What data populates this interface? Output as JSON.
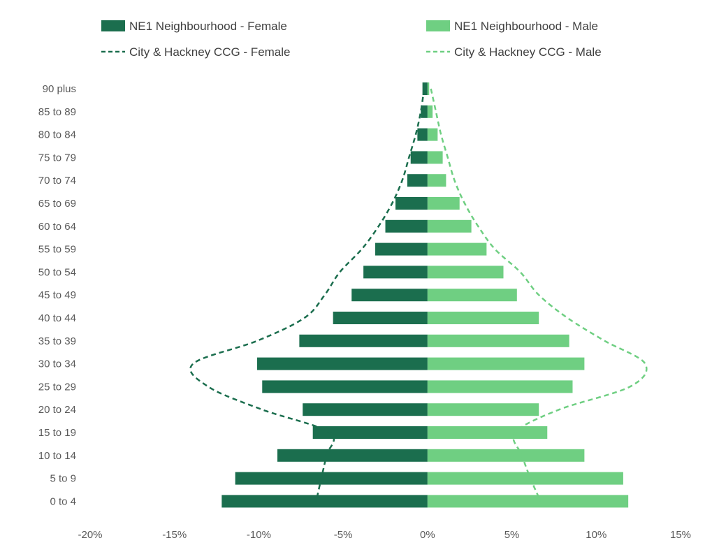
{
  "chart_data": {
    "type": "bar",
    "orientation": "horizontal",
    "title": "",
    "xlabel": "",
    "ylabel": "",
    "categories": [
      "90 plus",
      "85 to 89",
      "80 to 84",
      "75 to 79",
      "70 to 74",
      "65 to 69",
      "60 to 64",
      "55 to 59",
      "50 to 54",
      "45 to 49",
      "40 to 44",
      "35 to 39",
      "30 to 34",
      "25 to 29",
      "20 to 24",
      "15 to 19",
      "10 to 14",
      "5 to 9",
      "0 to 4"
    ],
    "xlim": [
      -20,
      15
    ],
    "x_ticks": [
      -20,
      -15,
      -10,
      -5,
      0,
      5,
      10,
      15
    ],
    "x_tick_labels": [
      "-20%",
      "-15%",
      "-10%",
      "-5%",
      "0%",
      "5%",
      "10%",
      "15%"
    ],
    "legend_position": "top",
    "grid": false,
    "series": [
      {
        "name": "NE1 Neighbourhood - Female",
        "kind": "bar",
        "color": "#1b6e4e",
        "values": [
          -0.3,
          -0.4,
          -0.6,
          -1.0,
          -1.2,
          -1.9,
          -2.5,
          -3.1,
          -3.8,
          -4.5,
          -5.6,
          -7.6,
          -10.1,
          -9.8,
          -7.4,
          -6.8,
          -8.9,
          -11.4,
          -12.2
        ]
      },
      {
        "name": "NE1 Neighbourhood - Male",
        "kind": "bar",
        "color": "#6fcf82",
        "values": [
          0.1,
          0.3,
          0.6,
          0.9,
          1.1,
          1.9,
          2.6,
          3.5,
          4.5,
          5.3,
          6.6,
          8.4,
          9.3,
          8.6,
          6.6,
          7.1,
          9.3,
          11.6,
          11.9
        ]
      },
      {
        "name": "City & Hackney CCG - Female",
        "kind": "line",
        "style": "dashed",
        "color": "#1b6e4e",
        "values": [
          -0.2,
          -0.4,
          -0.7,
          -1.1,
          -1.5,
          -2.1,
          -2.9,
          -3.9,
          -5.2,
          -6.1,
          -7.3,
          -10.1,
          -13.9,
          -13.0,
          -9.8,
          -5.8,
          -6.0,
          -6.3,
          -6.6
        ]
      },
      {
        "name": "City & Hackney CCG - Male",
        "kind": "line",
        "style": "dashed",
        "color": "#6fcf82",
        "values": [
          0.2,
          0.5,
          0.8,
          1.2,
          1.6,
          2.2,
          3.0,
          4.0,
          5.5,
          6.6,
          8.3,
          10.5,
          12.9,
          12.0,
          7.8,
          5.2,
          5.6,
          6.1,
          6.7
        ]
      }
    ]
  }
}
